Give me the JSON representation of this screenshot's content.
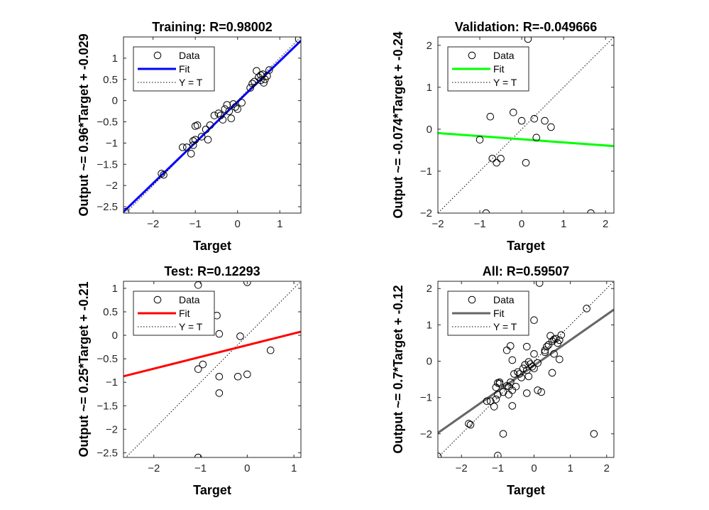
{
  "chart_data": [
    {
      "type": "scatter",
      "title": "Training: R=0.98002",
      "xlabel": "Target",
      "ylabel": "Output ~= 0.96*Target + -0.029",
      "xlim": [
        -2.7,
        1.5
      ],
      "ylim": [
        -2.65,
        1.5
      ],
      "xticks": [
        -2,
        -1,
        0,
        1
      ],
      "yticks": [
        -2.5,
        -2,
        -1.5,
        -1,
        -0.5,
        0,
        0.5,
        1
      ],
      "legend": [
        "Data",
        "Fit",
        "Y = T"
      ],
      "legend_position": "top-left",
      "fit_color": "#0000ff",
      "fit": {
        "slope": 0.96,
        "intercept": -0.029
      },
      "x": [
        -2.65,
        -1.75,
        -1.8,
        -1.3,
        -1.2,
        -1.1,
        -1.05,
        -1.0,
        -1.0,
        -0.95,
        -1.05,
        -0.85,
        -0.75,
        -0.65,
        -0.7,
        -0.55,
        -0.45,
        -0.4,
        -0.35,
        -0.3,
        -0.25,
        -0.2,
        -0.15,
        -0.1,
        -0.05,
        0.0,
        0.1,
        0.3,
        0.35,
        0.4,
        0.45,
        0.5,
        0.55,
        0.6,
        0.65,
        0.7,
        0.75,
        0.55,
        0.62,
        1.45
      ],
      "y": [
        -2.62,
        -1.75,
        -1.72,
        -1.1,
        -1.1,
        -1.25,
        -1.05,
        -0.92,
        -0.6,
        -0.58,
        -0.95,
        -0.85,
        -0.68,
        -0.58,
        -0.92,
        -0.35,
        -0.3,
        -0.35,
        -0.45,
        -0.2,
        -0.1,
        -0.25,
        -0.42,
        -0.08,
        -0.15,
        -0.2,
        -0.05,
        0.3,
        0.4,
        0.45,
        0.7,
        0.55,
        0.6,
        0.62,
        0.5,
        0.58,
        0.72,
        0.48,
        0.42,
        1.45
      ]
    },
    {
      "type": "scatter",
      "title": "Validation: R=-0.049666",
      "xlabel": "Target",
      "ylabel": "Output ~= -0.074*Target + -0.24",
      "xlim": [
        -2,
        2.2
      ],
      "ylim": [
        -2,
        2.2
      ],
      "xticks": [
        -2,
        -1,
        0,
        1,
        2
      ],
      "yticks": [
        -2,
        -1,
        0,
        1,
        2
      ],
      "legend": [
        "Data",
        "Fit",
        "Y = T"
      ],
      "legend_position": "top-left",
      "fit_color": "#00ff00",
      "fit": {
        "slope": -0.074,
        "intercept": -0.24
      },
      "x": [
        0.15,
        -0.75,
        -0.7,
        -0.6,
        -0.5,
        -0.2,
        0.0,
        0.3,
        0.55,
        0.7,
        0.35,
        0.1,
        -1.0,
        -0.85,
        1.65
      ],
      "y": [
        2.15,
        0.3,
        -0.7,
        -0.8,
        -0.7,
        0.4,
        0.2,
        0.25,
        0.2,
        0.05,
        -0.2,
        -0.8,
        -0.25,
        -2.0,
        -2.0
      ]
    },
    {
      "type": "scatter",
      "title": "Test: R=0.12293",
      "xlabel": "Target",
      "ylabel": "Output ~= 0.25*Target + -0.21",
      "xlim": [
        -2.65,
        1.15
      ],
      "ylim": [
        -2.6,
        1.15
      ],
      "xticks": [
        -2,
        -1,
        0,
        1
      ],
      "yticks": [
        -2.5,
        -2,
        -1.5,
        -1,
        -0.5,
        0,
        0.5,
        1
      ],
      "legend": [
        "Data",
        "Fit",
        "Y = T"
      ],
      "legend_position": "top-left",
      "fit_color": "#ff0000",
      "fit": {
        "slope": 0.25,
        "intercept": -0.21
      },
      "x": [
        -1.05,
        0.0,
        -0.65,
        -0.6,
        -0.15,
        0.5,
        -1.05,
        -0.95,
        -0.6,
        -0.6,
        -0.2,
        0.0,
        -1.05
      ],
      "y": [
        1.07,
        1.13,
        0.42,
        0.03,
        -0.02,
        -0.32,
        -0.72,
        -0.62,
        -0.88,
        -1.23,
        -0.88,
        -0.83,
        -2.6
      ]
    },
    {
      "type": "scatter",
      "title": "All: R=0.59507",
      "xlabel": "Target",
      "ylabel": "Output ~= 0.7*Target + -0.12",
      "xlim": [
        -2.65,
        2.2
      ],
      "ylim": [
        -2.65,
        2.2
      ],
      "xticks": [
        -2,
        -1,
        0,
        1,
        2
      ],
      "yticks": [
        -2,
        -1,
        0,
        1,
        2
      ],
      "legend": [
        "Data",
        "Fit",
        "Y = T"
      ],
      "legend_position": "top-left",
      "fit_color": "#666666",
      "fit": {
        "slope": 0.7,
        "intercept": -0.12
      },
      "x": [
        -2.65,
        -1.75,
        -1.8,
        -1.3,
        -1.2,
        -1.1,
        -1.05,
        -1.0,
        -1.0,
        -0.95,
        -0.85,
        -0.75,
        -0.65,
        -0.7,
        -0.55,
        -0.45,
        -0.4,
        -0.35,
        -0.3,
        -0.25,
        -0.2,
        -0.15,
        -0.1,
        -0.05,
        0.0,
        0.1,
        0.3,
        0.35,
        0.4,
        0.45,
        0.5,
        0.55,
        0.6,
        0.65,
        0.7,
        0.75,
        1.45,
        0.15,
        -0.75,
        -0.7,
        -0.6,
        -0.5,
        -0.2,
        0.0,
        0.3,
        0.55,
        0.7,
        0.1,
        -0.85,
        1.65,
        -1.05,
        0.0,
        -0.65,
        -0.6,
        -0.15,
        0.5,
        -0.95,
        -0.2,
        -1.05,
        -0.6,
        -1.0,
        0.2
      ],
      "y": [
        -2.62,
        -1.75,
        -1.72,
        -1.1,
        -1.1,
        -1.25,
        -1.05,
        -0.92,
        -0.6,
        -0.58,
        -0.85,
        -0.68,
        -0.58,
        -0.92,
        -0.35,
        -0.3,
        -0.35,
        -0.45,
        -0.2,
        -0.1,
        -0.25,
        -0.42,
        -0.08,
        -0.15,
        -0.2,
        -0.05,
        0.3,
        0.4,
        0.45,
        0.7,
        0.55,
        0.6,
        0.62,
        0.5,
        0.58,
        0.72,
        1.45,
        2.15,
        0.3,
        -0.7,
        -0.8,
        -0.7,
        0.4,
        0.2,
        0.25,
        0.2,
        0.05,
        -0.8,
        -2.0,
        -2.0,
        1.07,
        1.13,
        0.42,
        0.03,
        -0.02,
        -0.32,
        -0.62,
        -0.88,
        -0.72,
        -1.23,
        -2.6,
        -0.85
      ]
    }
  ]
}
